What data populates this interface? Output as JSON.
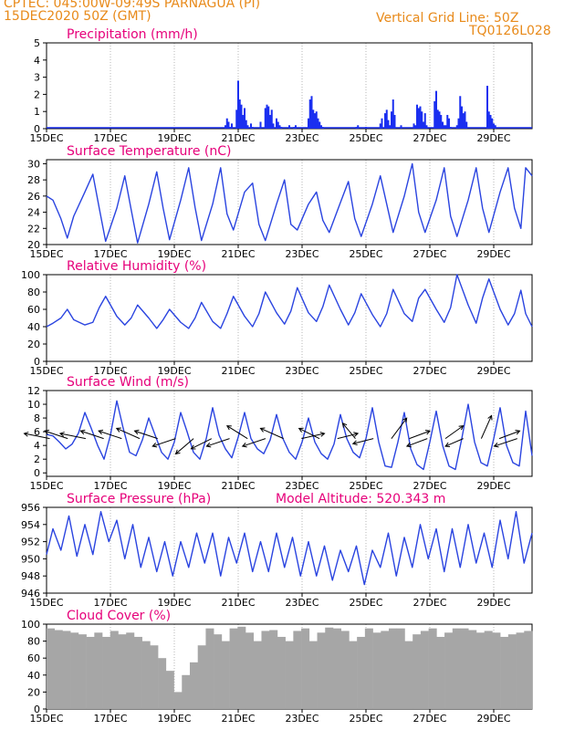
{
  "header": {
    "line1": "CPTEC:   045:00W-09:49S   PARNAGUA (PI)",
    "line2": "15DEC2020 50Z (GMT)",
    "grid_note": "Vertical Grid Line: 50Z",
    "code": "TQ0126L028"
  },
  "colors": {
    "header": "#e88a1a",
    "titles": "#e6007a",
    "series": "#2a44e0",
    "bars": "#1a2ff0",
    "cloud": "#a6a6a6",
    "arrows": "#000000"
  },
  "chart_data": [
    {
      "type": "bar",
      "title": "Precipitation (mm/h)",
      "x_ticks": [
        "15DEC",
        "17DEC",
        "19DEC",
        "21DEC",
        "23DEC",
        "25DEC",
        "27DEC",
        "29DEC"
      ],
      "x_range_days": [
        0,
        15.2
      ],
      "ylim": [
        0,
        5
      ],
      "yticks": [
        0,
        1,
        2,
        3,
        4,
        5
      ],
      "x_days": [
        5.6,
        5.65,
        5.7,
        5.75,
        5.8,
        5.95,
        6.0,
        6.05,
        6.1,
        6.15,
        6.2,
        6.25,
        6.3,
        6.4,
        6.45,
        6.7,
        6.85,
        6.9,
        6.95,
        7.0,
        7.05,
        7.1,
        7.2,
        7.25,
        7.3,
        7.35,
        7.6,
        7.75,
        7.8,
        8.2,
        8.25,
        8.3,
        8.35,
        8.4,
        8.45,
        8.5,
        8.55,
        8.6,
        8.65,
        9.7,
        9.75,
        10.0,
        10.45,
        10.5,
        10.6,
        10.65,
        10.7,
        10.75,
        10.8,
        10.85,
        10.9,
        11.1,
        11.5,
        11.55,
        11.6,
        11.65,
        11.7,
        11.75,
        11.8,
        11.85,
        11.9,
        12.15,
        12.2,
        12.25,
        12.3,
        12.35,
        12.4,
        12.45,
        12.5,
        12.55,
        12.6,
        12.65,
        12.85,
        12.9,
        12.95,
        13.0,
        13.05,
        13.1,
        13.15,
        13.8,
        13.85,
        13.9,
        13.95,
        14.0,
        14.05
      ],
      "values": [
        0.2,
        0.6,
        0.4,
        0.1,
        0.3,
        1.1,
        2.8,
        1.7,
        1.4,
        0.8,
        1.2,
        0.5,
        0.2,
        0.3,
        0.1,
        0.4,
        1.2,
        1.4,
        1.3,
        0.8,
        1.1,
        0.3,
        0.6,
        0.4,
        0.2,
        0.1,
        0.2,
        0.1,
        0.2,
        0.6,
        1.7,
        1.9,
        1.1,
        0.9,
        1.0,
        0.6,
        0.4,
        0.2,
        0.1,
        0.1,
        0.2,
        0.1,
        0.3,
        0.6,
        0.9,
        1.1,
        0.5,
        0.2,
        1.0,
        1.7,
        0.8,
        0.2,
        0.3,
        0.2,
        1.4,
        1.2,
        1.3,
        1.0,
        0.4,
        0.9,
        0.2,
        1.6,
        2.2,
        1.1,
        1.0,
        0.8,
        0.4,
        0.2,
        0.2,
        0.8,
        0.6,
        0.1,
        0.2,
        0.6,
        1.9,
        1.3,
        0.9,
        1.0,
        0.4,
        2.5,
        1.0,
        0.8,
        0.6,
        0.3,
        0.2
      ]
    },
    {
      "type": "line",
      "title": "Surface Temperature (nC)",
      "x_ticks": [
        "15DEC",
        "17DEC",
        "19DEC",
        "21DEC",
        "23DEC",
        "25DEC",
        "27DEC",
        "29DEC"
      ],
      "ylim": [
        20,
        30.5
      ],
      "yticks": [
        20,
        22,
        24,
        26,
        28,
        30
      ],
      "x_days": [
        0.0,
        0.2,
        0.45,
        0.65,
        0.85,
        1.2,
        1.45,
        1.65,
        1.85,
        2.2,
        2.45,
        2.65,
        2.85,
        3.2,
        3.45,
        3.65,
        3.85,
        4.2,
        4.45,
        4.65,
        4.85,
        5.2,
        5.45,
        5.65,
        5.85,
        6.2,
        6.45,
        6.65,
        6.85,
        7.2,
        7.45,
        7.65,
        7.85,
        8.2,
        8.45,
        8.65,
        8.85,
        9.2,
        9.45,
        9.65,
        9.85,
        10.2,
        10.45,
        10.65,
        10.85,
        11.2,
        11.45,
        11.65,
        11.85,
        12.2,
        12.45,
        12.65,
        12.85,
        13.2,
        13.45,
        13.65,
        13.85,
        14.2,
        14.45,
        14.65,
        14.85,
        15.0,
        15.2
      ],
      "values": [
        26.0,
        25.5,
        23.2,
        20.8,
        23.5,
        26.5,
        28.7,
        24.5,
        20.4,
        24.5,
        28.5,
        24.3,
        20.2,
        25.0,
        29.0,
        24.5,
        20.6,
        25.5,
        29.5,
        24.6,
        20.5,
        25.0,
        29.5,
        23.8,
        21.8,
        26.5,
        27.6,
        22.5,
        20.5,
        25.0,
        28.0,
        22.5,
        21.8,
        25.0,
        26.5,
        23.0,
        21.5,
        25.2,
        27.8,
        23.2,
        21.0,
        25.0,
        28.5,
        25.0,
        21.5,
        26.0,
        30.0,
        24.0,
        21.5,
        25.5,
        29.5,
        23.5,
        21.0,
        25.5,
        29.5,
        24.5,
        21.5,
        26.5,
        29.5,
        24.5,
        22.0,
        29.5,
        28.5
      ]
    },
    {
      "type": "line",
      "title": "Relative Humidity (%)",
      "x_ticks": [
        "15DEC",
        "17DEC",
        "19DEC",
        "21DEC",
        "23DEC",
        "25DEC",
        "27DEC",
        "29DEC"
      ],
      "ylim": [
        0,
        100
      ],
      "yticks": [
        0,
        20,
        40,
        60,
        80,
        100
      ],
      "x_days": [
        0.0,
        0.2,
        0.45,
        0.65,
        0.85,
        1.2,
        1.45,
        1.65,
        1.85,
        2.2,
        2.45,
        2.65,
        2.85,
        3.2,
        3.45,
        3.65,
        3.85,
        4.2,
        4.45,
        4.65,
        4.85,
        5.2,
        5.45,
        5.65,
        5.85,
        6.2,
        6.45,
        6.65,
        6.85,
        7.2,
        7.45,
        7.65,
        7.85,
        8.2,
        8.45,
        8.65,
        8.85,
        9.2,
        9.45,
        9.65,
        9.85,
        10.2,
        10.45,
        10.65,
        10.85,
        11.2,
        11.45,
        11.65,
        11.85,
        12.2,
        12.45,
        12.65,
        12.85,
        13.2,
        13.45,
        13.65,
        13.85,
        14.2,
        14.45,
        14.65,
        14.85,
        15.0,
        15.2
      ],
      "values": [
        40,
        44,
        50,
        60,
        48,
        42,
        45,
        62,
        75,
        52,
        42,
        50,
        65,
        50,
        38,
        48,
        60,
        45,
        38,
        50,
        68,
        46,
        38,
        55,
        75,
        52,
        40,
        55,
        80,
        56,
        43,
        58,
        85,
        56,
        46,
        63,
        88,
        60,
        42,
        56,
        78,
        54,
        40,
        55,
        83,
        55,
        46,
        73,
        83,
        60,
        45,
        62,
        100,
        65,
        44,
        73,
        95,
        60,
        42,
        55,
        82,
        55,
        40
      ]
    },
    {
      "type": "line",
      "title": "Surface Wind (m/s)",
      "x_ticks": [
        "15DEC",
        "17DEC",
        "19DEC",
        "21DEC",
        "23DEC",
        "25DEC",
        "27DEC",
        "29DEC"
      ],
      "ylim": [
        -0.5,
        12
      ],
      "yticks": [
        0,
        2,
        4,
        6,
        8,
        10,
        12
      ],
      "x_days": [
        0.0,
        0.2,
        0.4,
        0.6,
        0.8,
        1.0,
        1.2,
        1.4,
        1.6,
        1.8,
        2.0,
        2.2,
        2.4,
        2.6,
        2.8,
        3.0,
        3.2,
        3.4,
        3.6,
        3.8,
        4.0,
        4.2,
        4.4,
        4.6,
        4.8,
        5.0,
        5.2,
        5.4,
        5.6,
        5.8,
        6.0,
        6.2,
        6.4,
        6.6,
        6.8,
        7.0,
        7.2,
        7.4,
        7.6,
        7.8,
        8.0,
        8.2,
        8.4,
        8.6,
        8.8,
        9.0,
        9.2,
        9.4,
        9.6,
        9.8,
        10.0,
        10.2,
        10.4,
        10.6,
        10.8,
        11.0,
        11.2,
        11.4,
        11.6,
        11.8,
        12.0,
        12.2,
        12.4,
        12.6,
        12.8,
        13.0,
        13.2,
        13.4,
        13.6,
        13.8,
        14.0,
        14.2,
        14.4,
        14.6,
        14.8,
        15.0,
        15.2
      ],
      "values": [
        5.6,
        5.4,
        4.5,
        3.5,
        4.2,
        5.8,
        8.8,
        6.5,
        4.0,
        2.0,
        5.5,
        10.5,
        6.5,
        3.0,
        2.5,
        4.8,
        8.0,
        5.5,
        3.0,
        2.0,
        4.5,
        8.8,
        6.0,
        3.0,
        2.0,
        5.0,
        9.5,
        5.5,
        3.5,
        2.2,
        5.2,
        8.8,
        5.0,
        3.5,
        2.8,
        4.8,
        8.5,
        5.0,
        3.0,
        2.0,
        4.5,
        8.0,
        4.5,
        2.8,
        2.0,
        4.2,
        8.5,
        5.0,
        3.0,
        2.2,
        5.0,
        9.5,
        4.5,
        1.0,
        0.8,
        4.5,
        8.8,
        3.5,
        1.2,
        0.5,
        4.5,
        9.0,
        4.0,
        1.0,
        0.5,
        5.0,
        10.0,
        4.5,
        1.5,
        1.0,
        5.0,
        9.5,
        4.0,
        1.5,
        1.0,
        9.0,
        2.5
      ],
      "barbs_u": [
        -1.0,
        -0.9,
        -1.0,
        -0.9,
        -0.9,
        -0.9,
        -0.9,
        -0.9,
        -0.7,
        -0.8,
        -0.9,
        -0.8,
        -0.9,
        -0.9,
        0.9,
        -0.8,
        0.8,
        -0.5,
        -0.8,
        0.6,
        0.8,
        -0.8,
        0.7,
        -0.7,
        0.4,
        0.8,
        -0.9
      ],
      "barbs_v": [
        0.2,
        0.3,
        0.2,
        0.3,
        0.3,
        0.4,
        0.3,
        -0.3,
        -0.6,
        -0.4,
        -0.3,
        0.5,
        -0.3,
        0.4,
        0.2,
        0.4,
        0.2,
        0.6,
        -0.2,
        0.8,
        0.3,
        -0.3,
        0.5,
        -0.3,
        0.9,
        0.3,
        -0.3
      ]
    },
    {
      "type": "line",
      "title": "Surface Pressure (hPa)",
      "altitude_label": "Model Altitude: 520.343  m",
      "x_ticks": [
        "15DEC",
        "17DEC",
        "19DEC",
        "21DEC",
        "23DEC",
        "25DEC",
        "27DEC",
        "29DEC"
      ],
      "ylim": [
        946,
        956
      ],
      "yticks": [
        946,
        948,
        950,
        952,
        954,
        956
      ],
      "x_days": [
        0.0,
        0.2,
        0.45,
        0.7,
        0.95,
        1.2,
        1.45,
        1.7,
        1.95,
        2.2,
        2.45,
        2.7,
        2.95,
        3.2,
        3.45,
        3.7,
        3.95,
        4.2,
        4.45,
        4.7,
        4.95,
        5.2,
        5.45,
        5.7,
        5.95,
        6.2,
        6.45,
        6.7,
        6.95,
        7.2,
        7.45,
        7.7,
        7.95,
        8.2,
        8.45,
        8.7,
        8.95,
        9.2,
        9.45,
        9.7,
        9.95,
        10.2,
        10.45,
        10.7,
        10.95,
        11.2,
        11.45,
        11.7,
        11.95,
        12.2,
        12.45,
        12.7,
        12.95,
        13.2,
        13.45,
        13.7,
        13.95,
        14.2,
        14.45,
        14.7,
        14.95,
        15.2
      ],
      "values": [
        950.5,
        953.5,
        951.0,
        955.0,
        950.3,
        954.0,
        950.5,
        955.5,
        952.0,
        954.5,
        950.0,
        954.0,
        949.0,
        952.5,
        948.5,
        952.0,
        948.0,
        952.0,
        949.0,
        953.0,
        949.5,
        953.0,
        948.0,
        952.5,
        949.5,
        953.0,
        948.5,
        952.0,
        948.5,
        953.0,
        949.0,
        952.5,
        948.0,
        952.0,
        948.0,
        951.5,
        947.5,
        951.0,
        948.5,
        951.5,
        947.0,
        951.0,
        949.0,
        953.0,
        948.0,
        952.5,
        949.0,
        954.0,
        950.0,
        953.5,
        948.5,
        953.5,
        949.0,
        954.0,
        949.5,
        953.0,
        949.0,
        954.5,
        950.0,
        955.5,
        949.5,
        953.0
      ]
    },
    {
      "type": "bar",
      "title": "Cloud Cover (%)",
      "x_ticks": [
        "15DEC",
        "17DEC",
        "19DEC",
        "21DEC",
        "23DEC",
        "25DEC",
        "27DEC",
        "29DEC"
      ],
      "ylim": [
        0,
        100
      ],
      "yticks": [
        0,
        20,
        40,
        60,
        80,
        100
      ],
      "x_days": [
        0.0,
        0.25,
        0.5,
        0.75,
        1.0,
        1.25,
        1.5,
        1.75,
        2.0,
        2.25,
        2.5,
        2.75,
        3.0,
        3.25,
        3.5,
        3.75,
        4.0,
        4.25,
        4.5,
        4.75,
        5.0,
        5.25,
        5.5,
        5.75,
        6.0,
        6.25,
        6.5,
        6.75,
        7.0,
        7.25,
        7.5,
        7.75,
        8.0,
        8.25,
        8.5,
        8.75,
        9.0,
        9.25,
        9.5,
        9.75,
        10.0,
        10.25,
        10.5,
        10.75,
        11.0,
        11.25,
        11.5,
        11.75,
        12.0,
        12.25,
        12.5,
        12.75,
        13.0,
        13.25,
        13.5,
        13.75,
        14.0,
        14.25,
        14.5,
        14.75,
        15.0
      ],
      "values": [
        95,
        93,
        92,
        90,
        88,
        85,
        90,
        85,
        92,
        88,
        90,
        85,
        80,
        75,
        60,
        45,
        20,
        40,
        55,
        75,
        95,
        88,
        80,
        95,
        97,
        90,
        80,
        92,
        93,
        85,
        80,
        92,
        95,
        80,
        90,
        96,
        95,
        92,
        80,
        85,
        95,
        90,
        92,
        95,
        95,
        80,
        88,
        92,
        95,
        85,
        90,
        95,
        95,
        93,
        90,
        92,
        90,
        85,
        88,
        90,
        92
      ]
    }
  ]
}
